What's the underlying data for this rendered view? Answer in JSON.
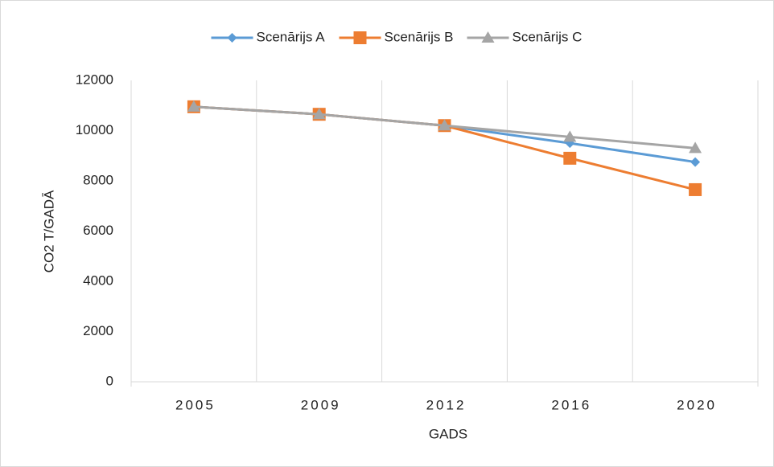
{
  "chart_data": {
    "type": "line",
    "categories": [
      "2005",
      "2009",
      "2012",
      "2016",
      "2020"
    ],
    "series": [
      {
        "name": "Scenārijs A",
        "color": "#5b9bd5",
        "marker": "diamond",
        "values": [
          10950,
          10650,
          10200,
          9500,
          8750
        ]
      },
      {
        "name": "Scenārijs B",
        "color": "#ed7d31",
        "marker": "square",
        "values": [
          10950,
          10650,
          10200,
          8900,
          7650
        ]
      },
      {
        "name": "Scenārijs C",
        "color": "#a5a5a5",
        "marker": "triangle",
        "values": [
          10950,
          10650,
          10200,
          9750,
          9300
        ]
      }
    ],
    "ylim": [
      0,
      12000
    ],
    "yticks": [
      0,
      2000,
      4000,
      6000,
      8000,
      10000,
      12000
    ],
    "xlabel": "GADS",
    "ylabel": "CO2 T/GADĀ",
    "grid": true,
    "legend": "top"
  }
}
